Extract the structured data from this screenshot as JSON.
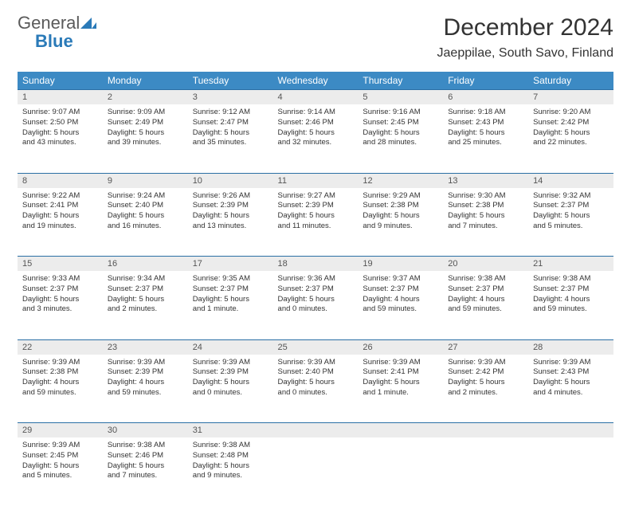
{
  "logo": {
    "text_gray": "General",
    "text_blue": "Blue"
  },
  "title": "December 2024",
  "location": "Jaeppilae, South Savo, Finland",
  "weekdays": [
    "Sunday",
    "Monday",
    "Tuesday",
    "Wednesday",
    "Thursday",
    "Friday",
    "Saturday"
  ],
  "colors": {
    "header_bg": "#3c8ac4",
    "header_text": "#ffffff",
    "daynum_bg": "#ececec",
    "border": "#2a6fa5",
    "logo_gray": "#5a5a5a",
    "logo_blue": "#2a7ab8"
  },
  "weeks": [
    [
      {
        "n": "1",
        "sr": "Sunrise: 9:07 AM",
        "ss": "Sunset: 2:50 PM",
        "d1": "Daylight: 5 hours",
        "d2": "and 43 minutes."
      },
      {
        "n": "2",
        "sr": "Sunrise: 9:09 AM",
        "ss": "Sunset: 2:49 PM",
        "d1": "Daylight: 5 hours",
        "d2": "and 39 minutes."
      },
      {
        "n": "3",
        "sr": "Sunrise: 9:12 AM",
        "ss": "Sunset: 2:47 PM",
        "d1": "Daylight: 5 hours",
        "d2": "and 35 minutes."
      },
      {
        "n": "4",
        "sr": "Sunrise: 9:14 AM",
        "ss": "Sunset: 2:46 PM",
        "d1": "Daylight: 5 hours",
        "d2": "and 32 minutes."
      },
      {
        "n": "5",
        "sr": "Sunrise: 9:16 AM",
        "ss": "Sunset: 2:45 PM",
        "d1": "Daylight: 5 hours",
        "d2": "and 28 minutes."
      },
      {
        "n": "6",
        "sr": "Sunrise: 9:18 AM",
        "ss": "Sunset: 2:43 PM",
        "d1": "Daylight: 5 hours",
        "d2": "and 25 minutes."
      },
      {
        "n": "7",
        "sr": "Sunrise: 9:20 AM",
        "ss": "Sunset: 2:42 PM",
        "d1": "Daylight: 5 hours",
        "d2": "and 22 minutes."
      }
    ],
    [
      {
        "n": "8",
        "sr": "Sunrise: 9:22 AM",
        "ss": "Sunset: 2:41 PM",
        "d1": "Daylight: 5 hours",
        "d2": "and 19 minutes."
      },
      {
        "n": "9",
        "sr": "Sunrise: 9:24 AM",
        "ss": "Sunset: 2:40 PM",
        "d1": "Daylight: 5 hours",
        "d2": "and 16 minutes."
      },
      {
        "n": "10",
        "sr": "Sunrise: 9:26 AM",
        "ss": "Sunset: 2:39 PM",
        "d1": "Daylight: 5 hours",
        "d2": "and 13 minutes."
      },
      {
        "n": "11",
        "sr": "Sunrise: 9:27 AM",
        "ss": "Sunset: 2:39 PM",
        "d1": "Daylight: 5 hours",
        "d2": "and 11 minutes."
      },
      {
        "n": "12",
        "sr": "Sunrise: 9:29 AM",
        "ss": "Sunset: 2:38 PM",
        "d1": "Daylight: 5 hours",
        "d2": "and 9 minutes."
      },
      {
        "n": "13",
        "sr": "Sunrise: 9:30 AM",
        "ss": "Sunset: 2:38 PM",
        "d1": "Daylight: 5 hours",
        "d2": "and 7 minutes."
      },
      {
        "n": "14",
        "sr": "Sunrise: 9:32 AM",
        "ss": "Sunset: 2:37 PM",
        "d1": "Daylight: 5 hours",
        "d2": "and 5 minutes."
      }
    ],
    [
      {
        "n": "15",
        "sr": "Sunrise: 9:33 AM",
        "ss": "Sunset: 2:37 PM",
        "d1": "Daylight: 5 hours",
        "d2": "and 3 minutes."
      },
      {
        "n": "16",
        "sr": "Sunrise: 9:34 AM",
        "ss": "Sunset: 2:37 PM",
        "d1": "Daylight: 5 hours",
        "d2": "and 2 minutes."
      },
      {
        "n": "17",
        "sr": "Sunrise: 9:35 AM",
        "ss": "Sunset: 2:37 PM",
        "d1": "Daylight: 5 hours",
        "d2": "and 1 minute."
      },
      {
        "n": "18",
        "sr": "Sunrise: 9:36 AM",
        "ss": "Sunset: 2:37 PM",
        "d1": "Daylight: 5 hours",
        "d2": "and 0 minutes."
      },
      {
        "n": "19",
        "sr": "Sunrise: 9:37 AM",
        "ss": "Sunset: 2:37 PM",
        "d1": "Daylight: 4 hours",
        "d2": "and 59 minutes."
      },
      {
        "n": "20",
        "sr": "Sunrise: 9:38 AM",
        "ss": "Sunset: 2:37 PM",
        "d1": "Daylight: 4 hours",
        "d2": "and 59 minutes."
      },
      {
        "n": "21",
        "sr": "Sunrise: 9:38 AM",
        "ss": "Sunset: 2:37 PM",
        "d1": "Daylight: 4 hours",
        "d2": "and 59 minutes."
      }
    ],
    [
      {
        "n": "22",
        "sr": "Sunrise: 9:39 AM",
        "ss": "Sunset: 2:38 PM",
        "d1": "Daylight: 4 hours",
        "d2": "and 59 minutes."
      },
      {
        "n": "23",
        "sr": "Sunrise: 9:39 AM",
        "ss": "Sunset: 2:39 PM",
        "d1": "Daylight: 4 hours",
        "d2": "and 59 minutes."
      },
      {
        "n": "24",
        "sr": "Sunrise: 9:39 AM",
        "ss": "Sunset: 2:39 PM",
        "d1": "Daylight: 5 hours",
        "d2": "and 0 minutes."
      },
      {
        "n": "25",
        "sr": "Sunrise: 9:39 AM",
        "ss": "Sunset: 2:40 PM",
        "d1": "Daylight: 5 hours",
        "d2": "and 0 minutes."
      },
      {
        "n": "26",
        "sr": "Sunrise: 9:39 AM",
        "ss": "Sunset: 2:41 PM",
        "d1": "Daylight: 5 hours",
        "d2": "and 1 minute."
      },
      {
        "n": "27",
        "sr": "Sunrise: 9:39 AM",
        "ss": "Sunset: 2:42 PM",
        "d1": "Daylight: 5 hours",
        "d2": "and 2 minutes."
      },
      {
        "n": "28",
        "sr": "Sunrise: 9:39 AM",
        "ss": "Sunset: 2:43 PM",
        "d1": "Daylight: 5 hours",
        "d2": "and 4 minutes."
      }
    ],
    [
      {
        "n": "29",
        "sr": "Sunrise: 9:39 AM",
        "ss": "Sunset: 2:45 PM",
        "d1": "Daylight: 5 hours",
        "d2": "and 5 minutes."
      },
      {
        "n": "30",
        "sr": "Sunrise: 9:38 AM",
        "ss": "Sunset: 2:46 PM",
        "d1": "Daylight: 5 hours",
        "d2": "and 7 minutes."
      },
      {
        "n": "31",
        "sr": "Sunrise: 9:38 AM",
        "ss": "Sunset: 2:48 PM",
        "d1": "Daylight: 5 hours",
        "d2": "and 9 minutes."
      },
      null,
      null,
      null,
      null
    ]
  ]
}
